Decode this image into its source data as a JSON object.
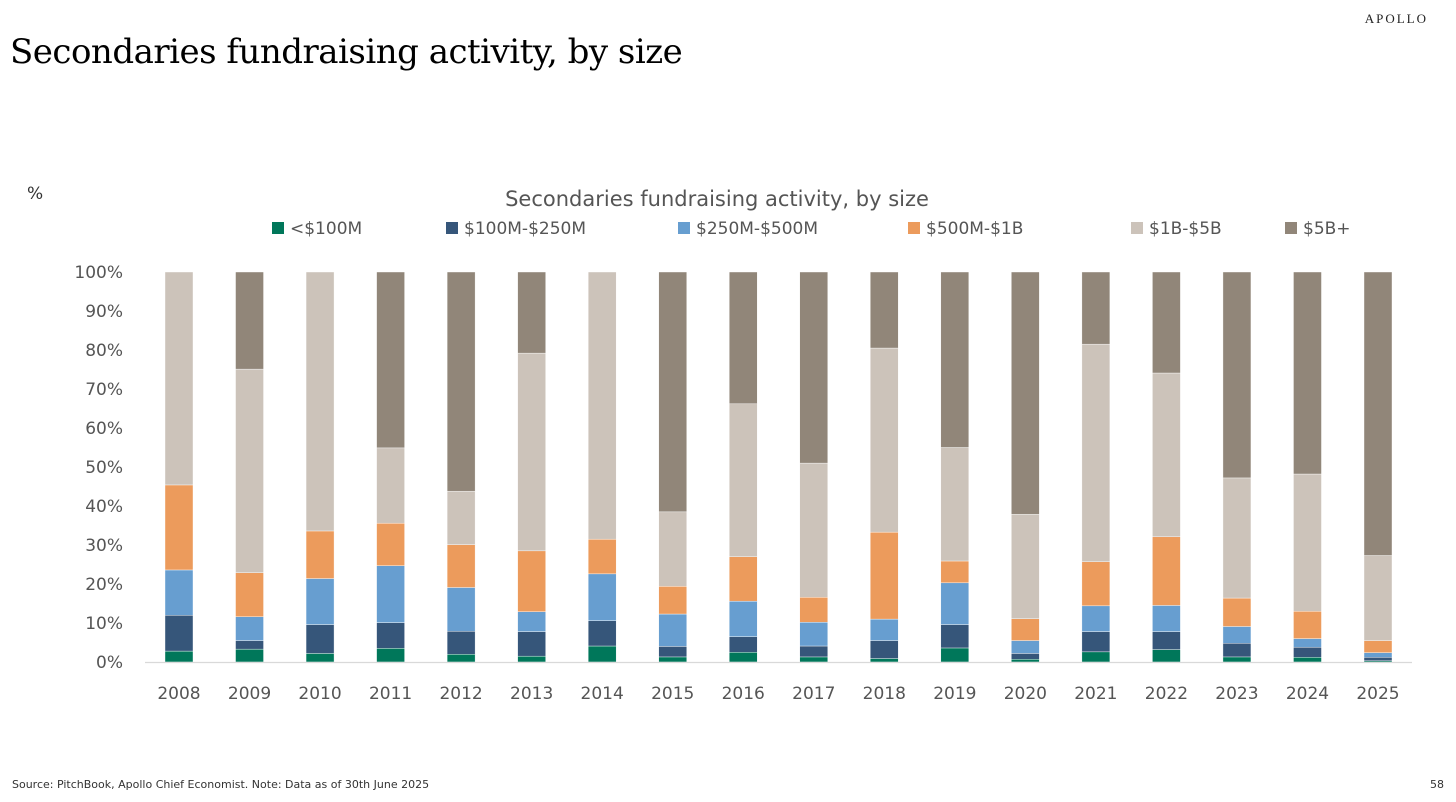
{
  "slide": {
    "title": "Secondaries fundraising activity, by size",
    "brand": "APOLLO",
    "unit_label": "%",
    "source": "Source: PitchBook, Apollo Chief Economist. Note: Data as of 30th June 2025",
    "page_number": "58"
  },
  "chart_data": {
    "type": "bar",
    "stacked": true,
    "title": "Secondaries fundraising activity, by size",
    "xlabel": "",
    "ylabel": "%",
    "ylim": [
      0,
      100
    ],
    "yticks": [
      "0%",
      "10%",
      "20%",
      "30%",
      "40%",
      "50%",
      "60%",
      "70%",
      "80%",
      "90%",
      "100%"
    ],
    "legend_position": "top",
    "grid": false,
    "categories": [
      "2008",
      "2009",
      "2010",
      "2011",
      "2012",
      "2013",
      "2014",
      "2015",
      "2016",
      "2017",
      "2018",
      "2019",
      "2020",
      "2021",
      "2022",
      "2023",
      "2024",
      "2025"
    ],
    "series": [
      {
        "name": "<$100M",
        "color": "#00775A",
        "values": [
          2.8,
          3.3,
          2.2,
          3.5,
          2.0,
          1.5,
          4.1,
          1.3,
          2.5,
          1.3,
          0.9,
          3.6,
          0.7,
          2.6,
          3.2,
          1.3,
          1.2,
          0.3
        ]
      },
      {
        "name": "$100M-$250M",
        "color": "#36567A",
        "values": [
          9.2,
          2.2,
          7.4,
          6.6,
          5.9,
          6.3,
          6.5,
          2.7,
          4.0,
          2.8,
          4.6,
          6.0,
          1.5,
          5.2,
          4.6,
          3.5,
          2.6,
          0.9
        ]
      },
      {
        "name": "$250M-$500M",
        "color": "#679ED0",
        "values": [
          11.6,
          6.1,
          11.8,
          14.6,
          11.2,
          5.1,
          12.0,
          8.3,
          9.1,
          6.1,
          5.5,
          10.7,
          3.3,
          6.6,
          6.7,
          4.3,
          2.2,
          1.2
        ]
      },
      {
        "name": "$500M-$1B",
        "color": "#EC9B5C",
        "values": [
          21.8,
          11.3,
          12.2,
          10.9,
          11.0,
          15.6,
          8.9,
          7.1,
          11.4,
          6.4,
          22.3,
          5.6,
          5.6,
          11.3,
          17.6,
          7.3,
          7.0,
          3.1
        ]
      },
      {
        "name": "$1B-$5B",
        "color": "#CCC3BA",
        "values": [
          54.6,
          52.2,
          66.4,
          19.3,
          13.7,
          50.7,
          68.5,
          19.1,
          39.2,
          34.4,
          47.2,
          29.1,
          26.8,
          55.8,
          42.0,
          30.8,
          35.2,
          21.8
        ]
      },
      {
        "name": "$5B+",
        "color": "#918679",
        "values": [
          0,
          24.9,
          0,
          45.1,
          56.2,
          20.8,
          0,
          61.5,
          33.8,
          49.0,
          19.5,
          45.0,
          62.1,
          18.5,
          25.9,
          52.8,
          51.8,
          72.7
        ]
      }
    ]
  }
}
